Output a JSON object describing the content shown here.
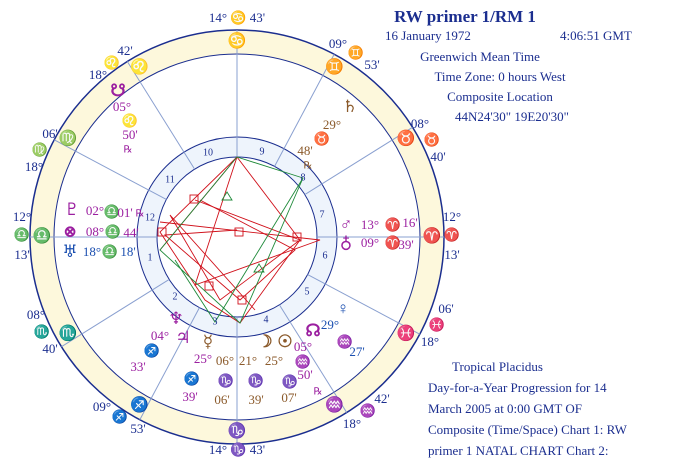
{
  "header": {
    "title": "RW primer 1/RM 1",
    "date": "16 January 1972",
    "time": "4:06:51 GMT",
    "lines": [
      "Greenwich Mean Time",
      "Time Zone: 0 hours West",
      "Composite Location",
      "44N24'30\"  19E20'30\""
    ]
  },
  "footer": {
    "lines": [
      "Tropical Placidus",
      "Day-for-a-Year Progression  for 14",
      "March 2005 at 0:00 GMT   OF",
      "Composite (Time/Space)    Chart 1: RW",
      "primer 1 NATAL CHART    Chart 2:"
    ]
  },
  "mc": "14° ♋ 43'",
  "ic": "14° ♑ 43'",
  "cusps": [
    {
      "a": "09°",
      "sign": "♊",
      "b": "53'"
    },
    {
      "a": "08°",
      "sign": "♉",
      "b": "40'"
    },
    {
      "a": "12°",
      "sign": "♈",
      "b": "13'"
    },
    {
      "a": "06'",
      "sign": "♓",
      "b": "18°"
    },
    {
      "a": "42'",
      "sign": "♒",
      "b": "18°"
    },
    {
      "a": "09°",
      "sign": "♐",
      "b": "53'"
    },
    {
      "a": "08°",
      "sign": "♏",
      "b": "40'"
    },
    {
      "a": "12°",
      "sign": "♎",
      "b": "13'"
    },
    {
      "a": "06'",
      "sign": "♍",
      "b": "18°"
    },
    {
      "a": "42'",
      "sign": "♌",
      "b": "18°"
    }
  ],
  "signs": [
    "♋",
    "♊",
    "♉",
    "♈",
    "♓",
    "♒",
    "♑",
    "♐",
    "♏",
    "♎",
    "♍",
    "♌"
  ],
  "houses": [
    "10",
    "9",
    "8",
    "7",
    "6",
    "5",
    "4",
    "3",
    "2",
    "1",
    "12",
    "11"
  ],
  "planets": [
    {
      "glyph": "☋",
      "deg": "05°",
      "sign": "♌",
      "min": "50'",
      "retro": "℞"
    },
    {
      "glyph": "♄",
      "deg": "29°",
      "sign": "♉",
      "min": "48'",
      "retro": "℞"
    },
    {
      "glyph": "♇",
      "deg": "02°",
      "sign": "♎",
      "min": "01'",
      "retro": "℞"
    },
    {
      "glyph": "⊗",
      "deg": "08°",
      "sign": "♎",
      "min": "44'"
    },
    {
      "glyph": "♅",
      "deg": "18°",
      "sign": "♎",
      "min": "18'"
    },
    {
      "glyph": "♂",
      "deg": "13°",
      "sign": "♈",
      "min": "16'"
    },
    {
      "glyph": "♁",
      "deg": "09°",
      "sign": "♈",
      "min": "39'"
    },
    {
      "glyph": "♀",
      "deg": "29°",
      "sign": "♒",
      "min": "27'"
    },
    {
      "glyph": "♆",
      "deg": "04°",
      "sign": "♐",
      "min": "33'"
    },
    {
      "glyph": "♃",
      "deg": "25°",
      "sign": "♐",
      "min": "39'"
    },
    {
      "glyph": "☿",
      "deg": "06°",
      "sign": "♑",
      "min": "06'"
    },
    {
      "glyph": "☽",
      "deg": "21°",
      "sign": "♑",
      "min": "39'"
    },
    {
      "glyph": "☉",
      "deg": "25°",
      "sign": "♑",
      "min": "07'"
    },
    {
      "glyph": "☊",
      "deg": "05°",
      "sign": "♒",
      "min": "50'",
      "retro": "℞"
    }
  ]
}
